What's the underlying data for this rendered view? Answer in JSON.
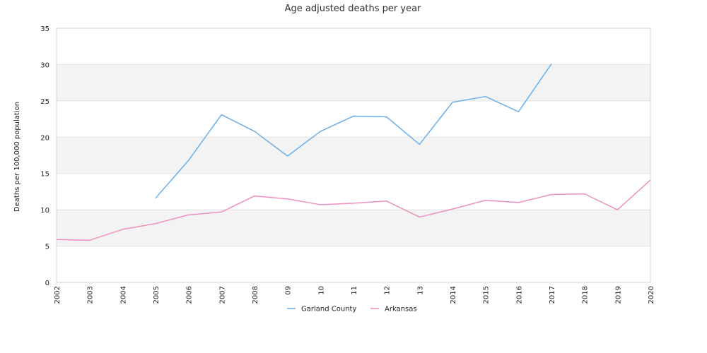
{
  "chart_data": {
    "type": "line",
    "title": "Age adjusted deaths per year",
    "ylabel": "Deaths per 100,000 population",
    "xlabel": "",
    "categories": [
      "2002",
      "2003",
      "2004",
      "2005",
      "2006",
      "2007",
      "2008",
      "09",
      "10",
      "11",
      "12",
      "13",
      "2014",
      "2015",
      "2016",
      "2017",
      "2018",
      "2019",
      "2020"
    ],
    "ylim": [
      0,
      35
    ],
    "yticks": [
      0,
      5,
      10,
      15,
      20,
      25,
      30,
      35
    ],
    "grid": "horizontal alternating bands",
    "legend_position": "bottom",
    "series": [
      {
        "name": "Garland County",
        "color": "#6aaee8",
        "values": [
          null,
          null,
          null,
          11.6,
          16.8,
          23.1,
          20.8,
          17.4,
          20.8,
          22.9,
          22.8,
          19.0,
          24.8,
          25.6,
          23.5,
          30.1,
          null,
          null,
          null
        ]
      },
      {
        "name": "Arkansas",
        "color": "#ee8fbf",
        "values": [
          5.9,
          5.8,
          7.3,
          8.1,
          9.3,
          9.7,
          11.9,
          11.5,
          10.7,
          10.9,
          11.2,
          9.0,
          10.1,
          11.3,
          11.0,
          12.1,
          12.2,
          10.0,
          14.1
        ]
      }
    ]
  }
}
